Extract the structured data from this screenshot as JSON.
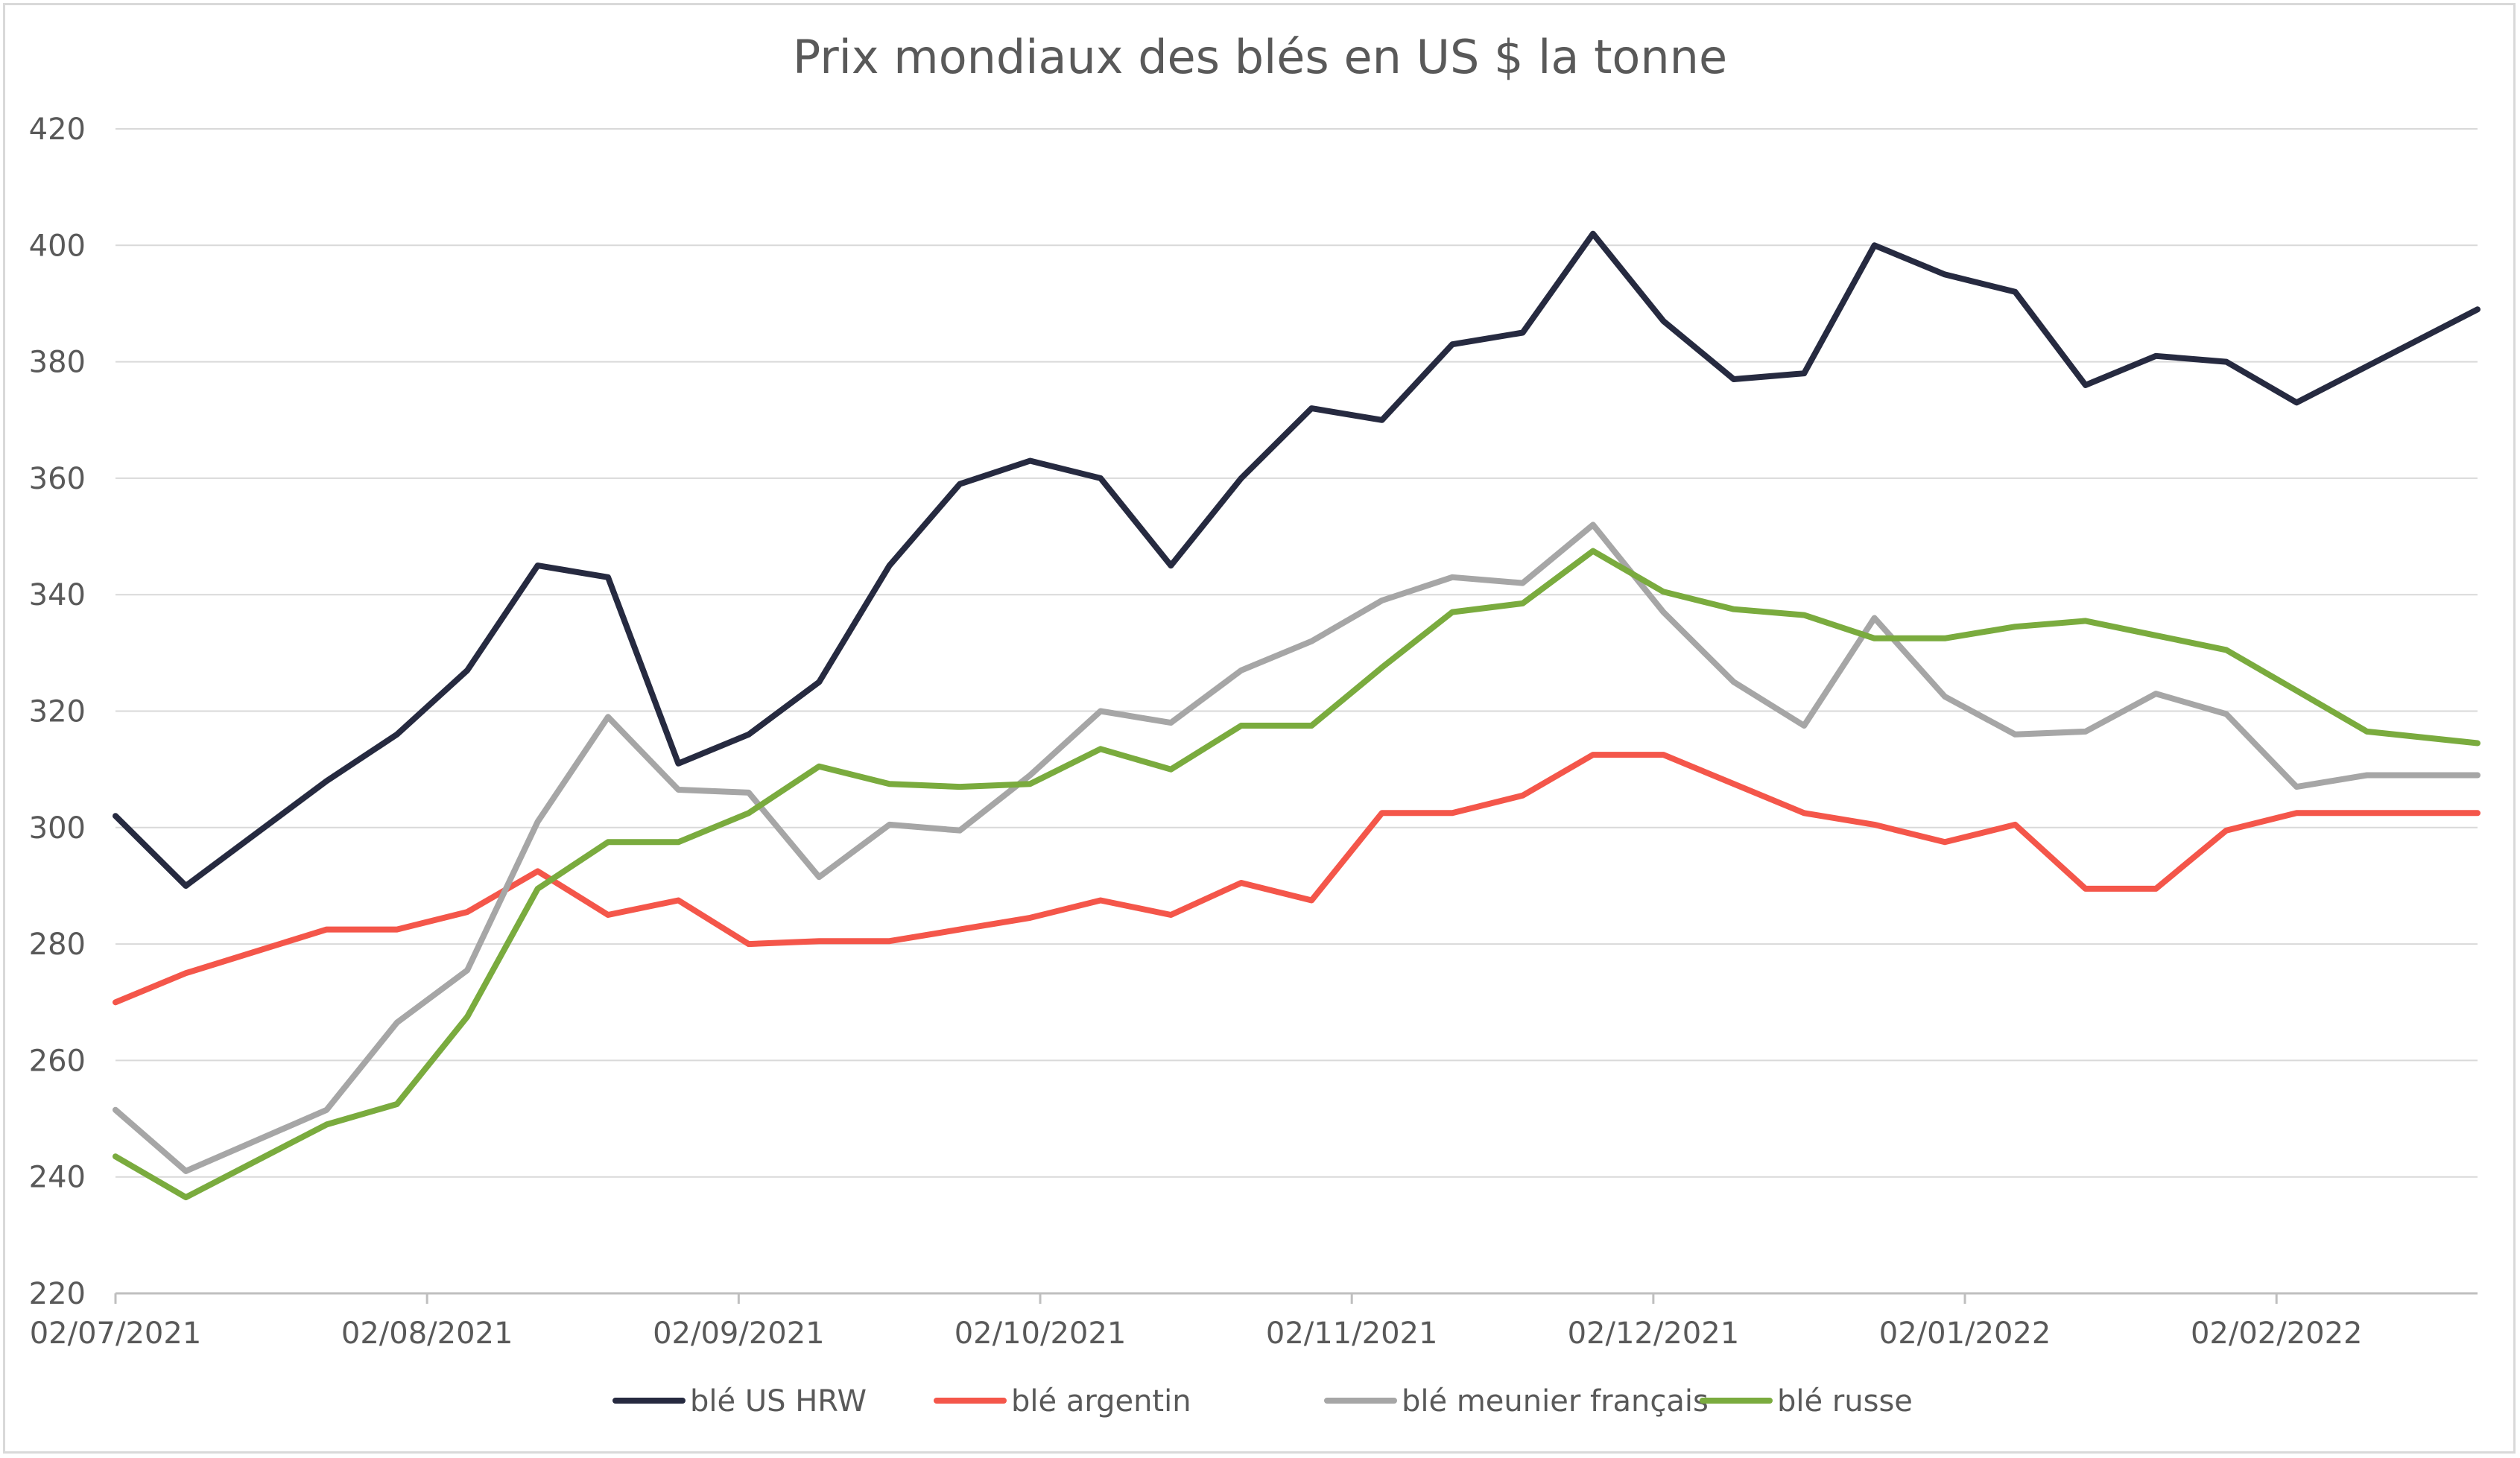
{
  "chart_data": {
    "type": "line",
    "title": "Prix mondiaux des blés en US $ la tonne",
    "xlabel": "",
    "ylabel": "",
    "ylim": [
      220,
      420
    ],
    "yticks": [
      "220",
      "240",
      "260",
      "280",
      "300",
      "320",
      "340",
      "360",
      "380",
      "400",
      "420"
    ],
    "xlim": [
      "2021-07-02",
      "2022-02-22"
    ],
    "xticks": [
      {
        "date": "2021-07-02",
        "label": "02/07/2021"
      },
      {
        "date": "2021-08-02",
        "label": "02/08/2021"
      },
      {
        "date": "2021-09-02",
        "label": "02/09/2021"
      },
      {
        "date": "2021-10-02",
        "label": "02/10/2021"
      },
      {
        "date": "2021-11-02",
        "label": "02/11/2021"
      },
      {
        "date": "2021-12-02",
        "label": "02/12/2021"
      },
      {
        "date": "2022-01-02",
        "label": "02/01/2022"
      },
      {
        "date": "2022-02-02",
        "label": "02/02/2022"
      }
    ],
    "grid": true,
    "legend_position": "bottom",
    "series": [
      {
        "name": "blé US HRW",
        "color": "#262a40",
        "points": [
          [
            "2021-07-02",
            302
          ],
          [
            "2021-07-09",
            290
          ],
          [
            "2021-07-23",
            308
          ],
          [
            "2021-07-30",
            316
          ],
          [
            "2021-08-06",
            327
          ],
          [
            "2021-08-13",
            345
          ],
          [
            "2021-08-20",
            343
          ],
          [
            "2021-08-27",
            311
          ],
          [
            "2021-09-03",
            316
          ],
          [
            "2021-09-10",
            325
          ],
          [
            "2021-09-17",
            345
          ],
          [
            "2021-09-24",
            359
          ],
          [
            "2021-10-01",
            363
          ],
          [
            "2021-10-08",
            360
          ],
          [
            "2021-10-15",
            345
          ],
          [
            "2021-10-22",
            360
          ],
          [
            "2021-10-29",
            372
          ],
          [
            "2021-11-05",
            370
          ],
          [
            "2021-11-12",
            383
          ],
          [
            "2021-11-19",
            385
          ],
          [
            "2021-11-26",
            402
          ],
          [
            "2021-12-03",
            387
          ],
          [
            "2021-12-10",
            377
          ],
          [
            "2021-12-17",
            378
          ],
          [
            "2021-12-24",
            400
          ],
          [
            "2021-12-31",
            395
          ],
          [
            "2022-01-07",
            392
          ],
          [
            "2022-01-14",
            376
          ],
          [
            "2022-01-21",
            381
          ],
          [
            "2022-01-28",
            380
          ],
          [
            "2022-02-04",
            373
          ],
          [
            "2022-02-22",
            389
          ]
        ]
      },
      {
        "name": "blé argentin",
        "color": "#f4564a",
        "points": [
          [
            "2021-07-02",
            270
          ],
          [
            "2021-07-09",
            275
          ],
          [
            "2021-07-23",
            282.5
          ],
          [
            "2021-07-30",
            282.5
          ],
          [
            "2021-08-06",
            285.5
          ],
          [
            "2021-08-13",
            292.5
          ],
          [
            "2021-08-20",
            285
          ],
          [
            "2021-08-27",
            287.5
          ],
          [
            "2021-09-03",
            280
          ],
          [
            "2021-09-10",
            280.5
          ],
          [
            "2021-09-17",
            280.5
          ],
          [
            "2021-09-24",
            282.5
          ],
          [
            "2021-10-01",
            284.5
          ],
          [
            "2021-10-08",
            287.5
          ],
          [
            "2021-10-15",
            285
          ],
          [
            "2021-10-22",
            290.5
          ],
          [
            "2021-10-29",
            287.5
          ],
          [
            "2021-11-05",
            302.5
          ],
          [
            "2021-11-12",
            302.5
          ],
          [
            "2021-11-19",
            305.5
          ],
          [
            "2021-11-26",
            312.5
          ],
          [
            "2021-12-03",
            312.5
          ],
          [
            "2021-12-10",
            307.5
          ],
          [
            "2021-12-17",
            302.5
          ],
          [
            "2021-12-24",
            300.5
          ],
          [
            "2021-12-31",
            297.5
          ],
          [
            "2022-01-07",
            300.5
          ],
          [
            "2022-01-14",
            289.5
          ],
          [
            "2022-01-21",
            289.5
          ],
          [
            "2022-01-28",
            299.5
          ],
          [
            "2022-02-04",
            302.5
          ],
          [
            "2022-02-22",
            302.5
          ]
        ]
      },
      {
        "name": "blé meunier français",
        "color": "#a6a6a6",
        "points": [
          [
            "2021-07-02",
            251.5
          ],
          [
            "2021-07-09",
            241
          ],
          [
            "2021-07-23",
            251.5
          ],
          [
            "2021-07-30",
            266.5
          ],
          [
            "2021-08-06",
            275.5
          ],
          [
            "2021-08-13",
            301
          ],
          [
            "2021-08-20",
            319
          ],
          [
            "2021-08-27",
            306.5
          ],
          [
            "2021-09-03",
            306
          ],
          [
            "2021-09-10",
            291.5
          ],
          [
            "2021-09-17",
            300.5
          ],
          [
            "2021-09-24",
            299.5
          ],
          [
            "2021-10-01",
            309
          ],
          [
            "2021-10-08",
            320
          ],
          [
            "2021-10-15",
            318
          ],
          [
            "2021-10-22",
            327
          ],
          [
            "2021-10-29",
            332
          ],
          [
            "2021-11-05",
            339
          ],
          [
            "2021-11-12",
            343
          ],
          [
            "2021-11-19",
            342
          ],
          [
            "2021-11-26",
            352
          ],
          [
            "2021-12-03",
            337
          ],
          [
            "2021-12-10",
            325
          ],
          [
            "2021-12-17",
            317.5
          ],
          [
            "2021-12-24",
            336
          ],
          [
            "2021-12-31",
            322.5
          ],
          [
            "2022-01-07",
            316
          ],
          [
            "2022-01-14",
            316.5
          ],
          [
            "2022-01-21",
            323
          ],
          [
            "2022-01-28",
            319.5
          ],
          [
            "2022-02-04",
            307
          ],
          [
            "2022-02-11",
            309
          ],
          [
            "2022-02-22",
            309
          ]
        ]
      },
      {
        "name": "blé russe",
        "color": "#7aab3e",
        "points": [
          [
            "2021-07-02",
            243.5
          ],
          [
            "2021-07-09",
            236.5
          ],
          [
            "2021-07-23",
            249
          ],
          [
            "2021-07-30",
            252.5
          ],
          [
            "2021-08-06",
            267.5
          ],
          [
            "2021-08-13",
            289.5
          ],
          [
            "2021-08-20",
            297.5
          ],
          [
            "2021-08-27",
            297.5
          ],
          [
            "2021-09-03",
            302.5
          ],
          [
            "2021-09-10",
            310.5
          ],
          [
            "2021-09-17",
            307.5
          ],
          [
            "2021-09-24",
            307
          ],
          [
            "2021-10-01",
            307.5
          ],
          [
            "2021-10-08",
            313.5
          ],
          [
            "2021-10-15",
            310
          ],
          [
            "2021-10-22",
            317.5
          ],
          [
            "2021-10-29",
            317.5
          ],
          [
            "2021-11-05",
            327.5
          ],
          [
            "2021-11-12",
            337
          ],
          [
            "2021-11-19",
            338.5
          ],
          [
            "2021-11-26",
            347.5
          ],
          [
            "2021-12-03",
            340.5
          ],
          [
            "2021-12-10",
            337.5
          ],
          [
            "2021-12-17",
            336.5
          ],
          [
            "2021-12-24",
            332.5
          ],
          [
            "2021-12-31",
            332.5
          ],
          [
            "2022-01-07",
            334.5
          ],
          [
            "2022-01-14",
            335.5
          ],
          [
            "2022-01-21",
            333
          ],
          [
            "2022-01-28",
            330.5
          ],
          [
            "2022-02-04",
            323.5
          ],
          [
            "2022-02-11",
            316.5
          ],
          [
            "2022-02-22",
            314.5
          ]
        ]
      }
    ]
  }
}
